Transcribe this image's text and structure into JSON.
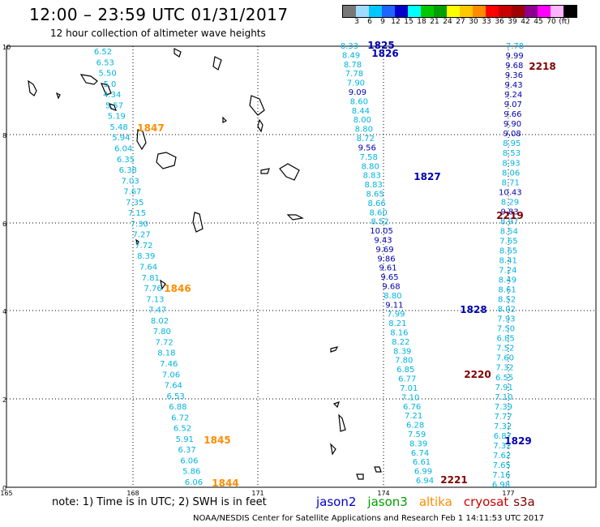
{
  "title": "12:00 – 23:59 UTC 01/31/2017",
  "subtitle": "12 hour collection of altimeter wave heights",
  "colorbar": {
    "colors": [
      "#777777",
      "#9fdcff",
      "#00c8ff",
      "#1e64ff",
      "#0000c8",
      "#00ffff",
      "#00c800",
      "#00a000",
      "#ffff00",
      "#ffc800",
      "#ff8c00",
      "#ff0000",
      "#c80000",
      "#a00000",
      "#8c008c",
      "#ff00ff",
      "#ffb4ff",
      "#000000"
    ],
    "labels": [
      "3",
      "6",
      "9",
      "12",
      "15",
      "18",
      "21",
      "24",
      "27",
      "30",
      "33",
      "36",
      "39",
      "42",
      "45",
      "70",
      "(ft)"
    ]
  },
  "axes": {
    "y_ticks": [
      "10",
      "8",
      "6",
      "4",
      "2",
      "0"
    ],
    "x_ticks": [
      "165",
      "168",
      "171",
      "174",
      "177"
    ]
  },
  "passes": [
    {
      "label": "1825",
      "color": "#0000b0"
    },
    {
      "label": "1826",
      "color": "#0000b0"
    },
    {
      "label": "1827",
      "color": "#0000b0"
    },
    {
      "label": "1828",
      "color": "#0000b0"
    },
    {
      "label": "1829",
      "color": "#0000b0"
    },
    {
      "label": "1844",
      "color": "#ff8c00"
    },
    {
      "label": "1845",
      "color": "#ff8c00"
    },
    {
      "label": "1846",
      "color": "#ff8c00"
    },
    {
      "label": "1847",
      "color": "#ff8c00"
    },
    {
      "label": "2218",
      "color": "#800000"
    },
    {
      "label": "2219",
      "color": "#800000"
    },
    {
      "label": "2220",
      "color": "#800000"
    },
    {
      "label": "2221",
      "color": "#800000"
    }
  ],
  "tracks": {
    "track_a": {
      "color": "#00b4e0",
      "values": [
        "6.52",
        "6.53",
        "5.50",
        "5.0",
        "4.34",
        "5.57",
        "5.19",
        "5.48",
        "5.94",
        "6.04",
        "6.35",
        "6.38",
        "7.03",
        "7.67",
        "7.35",
        "7.15",
        "7.30",
        "7.27",
        "7.72",
        "8.39",
        "7.64",
        "7.81",
        "7.76",
        "7.13",
        "7.47",
        "8.02",
        "7.80",
        "7.72",
        "8.18",
        "7.46",
        "7.06",
        "7.64",
        "6.53",
        "6.88",
        "6.72",
        "6.52",
        "5.91",
        "6.37",
        "6.06",
        "5.86",
        "6.06"
      ]
    },
    "track_b": {
      "colors_note": "mixed cyan/dark blue",
      "values": [
        [
          "8.33",
          "#00b4e0"
        ],
        [
          "8.49",
          "#00b4e0"
        ],
        [
          "8.78",
          "#00b4e0"
        ],
        [
          "7.78",
          "#00b4e0"
        ],
        [
          "7.90",
          "#00b4e0"
        ],
        [
          "9.09",
          "#0000b0"
        ],
        [
          "8.60",
          "#00b4e0"
        ],
        [
          "8.44",
          "#00b4e0"
        ],
        [
          "8.00",
          "#00b4e0"
        ],
        [
          "8.80",
          "#00b4e0"
        ],
        [
          "8.72",
          "#00b4e0"
        ],
        [
          "9.56",
          "#0000b0"
        ],
        [
          "7.58",
          "#00b4e0"
        ],
        [
          "8.80",
          "#00b4e0"
        ],
        [
          "8.83",
          "#00b4e0"
        ],
        [
          "8.83",
          "#00b4e0"
        ],
        [
          "8.65",
          "#00b4e0"
        ],
        [
          "8.66",
          "#00b4e0"
        ],
        [
          "8.60",
          "#00b4e0"
        ],
        [
          "8.52",
          "#00b4e0"
        ],
        [
          "10.05",
          "#0000b0"
        ],
        [
          "9.43",
          "#0000b0"
        ],
        [
          "9.69",
          "#0000b0"
        ],
        [
          "9.86",
          "#0000b0"
        ],
        [
          "9.61",
          "#0000b0"
        ],
        [
          "9.65",
          "#0000b0"
        ],
        [
          "9.68",
          "#0000b0"
        ],
        [
          "8.80",
          "#00b4e0"
        ],
        [
          "9.11",
          "#0000b0"
        ],
        [
          "7.99",
          "#00b4e0"
        ],
        [
          "8.21",
          "#00b4e0"
        ],
        [
          "8.16",
          "#00b4e0"
        ],
        [
          "8.22",
          "#00b4e0"
        ],
        [
          "8.39",
          "#00b4e0"
        ],
        [
          "7.80",
          "#00b4e0"
        ],
        [
          "6.85",
          "#00b4e0"
        ],
        [
          "6.77",
          "#00b4e0"
        ],
        [
          "7.01",
          "#00b4e0"
        ],
        [
          "7.10",
          "#00b4e0"
        ],
        [
          "6.76",
          "#00b4e0"
        ],
        [
          "7.21",
          "#00b4e0"
        ],
        [
          "6.28",
          "#00b4e0"
        ],
        [
          "7.59",
          "#00b4e0"
        ],
        [
          "8.39",
          "#00b4e0"
        ],
        [
          "6.74",
          "#00b4e0"
        ],
        [
          "6.61",
          "#00b4e0"
        ],
        [
          "6.99",
          "#00b4e0"
        ],
        [
          "6.94",
          "#00b4e0"
        ]
      ]
    },
    "track_c": {
      "values": [
        [
          "7.78",
          "#00b4e0"
        ],
        [
          "9.99",
          "#0000b0"
        ],
        [
          "9.68",
          "#0000b0"
        ],
        [
          "9.36",
          "#0000b0"
        ],
        [
          "9.43",
          "#0000b0"
        ],
        [
          "9.24",
          "#0000b0"
        ],
        [
          "9.07",
          "#0000b0"
        ],
        [
          "9.66",
          "#0000b0"
        ],
        [
          "9.90",
          "#0000b0"
        ],
        [
          "9.08",
          "#0000b0"
        ],
        [
          "8.95",
          "#00b4e0"
        ],
        [
          "8.53",
          "#00b4e0"
        ],
        [
          "8.93",
          "#00b4e0"
        ],
        [
          "8.06",
          "#00b4e0"
        ],
        [
          "8.71",
          "#00b4e0"
        ],
        [
          "10.43",
          "#0000b0"
        ],
        [
          "8.29",
          "#00b4e0"
        ],
        [
          "9.83",
          "#0000b0"
        ],
        [
          "8.97",
          "#00b4e0"
        ],
        [
          "8.54",
          "#00b4e0"
        ],
        [
          "7.65",
          "#00b4e0"
        ],
        [
          "8.65",
          "#00b4e0"
        ],
        [
          "8.41",
          "#00b4e0"
        ],
        [
          "7.24",
          "#00b4e0"
        ],
        [
          "8.49",
          "#00b4e0"
        ],
        [
          "8.61",
          "#00b4e0"
        ],
        [
          "8.52",
          "#00b4e0"
        ],
        [
          "8.02",
          "#00b4e0"
        ],
        [
          "7.93",
          "#00b4e0"
        ],
        [
          "7.50",
          "#00b4e0"
        ],
        [
          "6.85",
          "#00b4e0"
        ],
        [
          "7.52",
          "#00b4e0"
        ],
        [
          "7.60",
          "#00b4e0"
        ],
        [
          "7.32",
          "#00b4e0"
        ],
        [
          "6.55",
          "#00b4e0"
        ],
        [
          "7.91",
          "#00b4e0"
        ],
        [
          "7.10",
          "#00b4e0"
        ],
        [
          "7.39",
          "#00b4e0"
        ],
        [
          "7.77",
          "#00b4e0"
        ],
        [
          "7.32",
          "#00b4e0"
        ],
        [
          "6.87",
          "#00b4e0"
        ],
        [
          "7.32",
          "#00b4e0"
        ],
        [
          "7.62",
          "#00b4e0"
        ],
        [
          "7.65",
          "#00b4e0"
        ],
        [
          "7.16",
          "#00b4e0"
        ],
        [
          "6.98",
          "#00b4e0"
        ]
      ]
    }
  },
  "note": "note:  1) Time is in UTC;  2) SWH is in feet",
  "satellites": [
    {
      "name": "jason2",
      "color": "#0000c8"
    },
    {
      "name": "jason3",
      "color": "#00a000"
    },
    {
      "name": "altika",
      "color": "#ff8c00"
    },
    {
      "name": "cryosat",
      "color": "#c80000"
    },
    {
      "name": "s3a",
      "color": "#800000"
    }
  ],
  "footer": "NOAA/NESDIS Center for Satellite Applications and Research    Feb  1 14:11:53 UTC 2017"
}
